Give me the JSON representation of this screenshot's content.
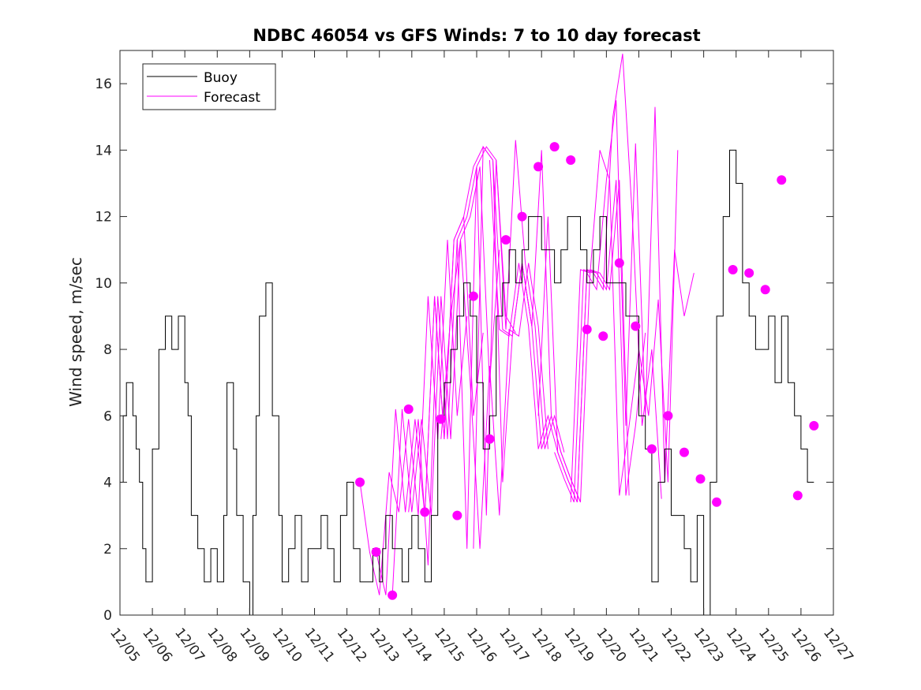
{
  "chart_data": {
    "type": "line",
    "title": "NDBC 46054 vs GFS Winds: 7 to 10 day forecast",
    "xlabel": "",
    "ylabel": "Wind speed, m/sec",
    "xlim": [
      0,
      22
    ],
    "ylim": [
      0,
      17
    ],
    "x_tick_labels": [
      "12/05",
      "12/06",
      "12/07",
      "12/08",
      "12/09",
      "12/10",
      "12/11",
      "12/12",
      "12/13",
      "12/14",
      "12/15",
      "12/16",
      "12/17",
      "12/18",
      "12/19",
      "12/20",
      "12/21",
      "12/22",
      "12/23",
      "12/24",
      "12/25",
      "12/26",
      "12/27"
    ],
    "y_ticks": [
      0,
      2,
      4,
      6,
      8,
      10,
      12,
      14,
      16
    ],
    "legend": {
      "location": "top-left",
      "entries": [
        {
          "label": "Buoy",
          "color": "#000000"
        },
        {
          "label": "Forecast",
          "color": "#ff00ff"
        }
      ]
    },
    "colors": {
      "buoy": "#000000",
      "forecast": "#ff00ff"
    },
    "series": [
      {
        "name": "Buoy",
        "x": [
          0.0,
          0.1,
          0.2,
          0.3,
          0.4,
          0.5,
          0.6,
          0.7,
          0.8,
          1.0,
          1.2,
          1.4,
          1.6,
          1.8,
          2.0,
          2.1,
          2.2,
          2.4,
          2.6,
          2.8,
          3.0,
          3.2,
          3.3,
          3.5,
          3.6,
          3.8,
          4.0,
          4.1,
          4.2,
          4.3,
          4.5,
          4.7,
          4.9,
          5.0,
          5.2,
          5.4,
          5.6,
          5.8,
          6.0,
          6.2,
          6.4,
          6.6,
          6.8,
          7.0,
          7.2,
          7.4,
          7.6,
          7.8,
          8.0,
          8.1,
          8.2,
          8.4,
          8.5,
          8.7,
          8.9,
          9.0,
          9.2,
          9.4,
          9.6,
          9.8,
          10.0,
          10.2,
          10.4,
          10.6,
          10.8,
          11.0,
          11.2,
          11.4,
          11.6,
          11.8,
          12.0,
          12.2,
          12.4,
          12.6,
          12.8,
          13.0,
          13.2,
          13.4,
          13.6,
          13.8,
          14.0,
          14.2,
          14.4,
          14.6,
          14.8,
          15.0,
          15.2,
          15.4,
          15.6,
          15.8,
          16.0,
          16.2,
          16.4,
          16.6,
          16.8,
          17.0,
          17.2,
          17.4,
          17.6,
          17.8,
          18.0,
          18.2,
          18.4,
          18.6,
          18.8,
          19.0,
          19.2,
          19.4,
          19.6,
          19.8,
          20.0,
          20.2,
          20.4,
          20.6,
          20.8,
          21.0,
          21.2,
          21.4
        ],
        "y": [
          4,
          6,
          7,
          7,
          6,
          5,
          4,
          2,
          1,
          5,
          8,
          9,
          8,
          9,
          7,
          6,
          3,
          2,
          1,
          2,
          1,
          3,
          7,
          5,
          3,
          1,
          0,
          3,
          6,
          9,
          10,
          6,
          3,
          1,
          2,
          3,
          1,
          2,
          2,
          3,
          2,
          1,
          3,
          4,
          2,
          1,
          1,
          2,
          1,
          2,
          3,
          2,
          2,
          1,
          2,
          3,
          2,
          1,
          3,
          6,
          7,
          8,
          9,
          10,
          9,
          7,
          5,
          6,
          9,
          10,
          11,
          10,
          11,
          12,
          12,
          11,
          11,
          10,
          11,
          12,
          12,
          11,
          10,
          11,
          12,
          10,
          10,
          10,
          9,
          9,
          6,
          5,
          1,
          4,
          5,
          3,
          3,
          2,
          1,
          3,
          0,
          4,
          9,
          12,
          14,
          13,
          10,
          9,
          8,
          8,
          9,
          7,
          9,
          7,
          6,
          5,
          4,
          4
        ]
      },
      {
        "name": "Forecast",
        "runs": [
          {
            "x": [
              7.4,
              7.7,
              8.0,
              8.3,
              8.6,
              8.9,
              9.2,
              9.5,
              9.8,
              10.1,
              10.4,
              10.7
            ],
            "y": [
              4.0,
              1.9,
              0.6,
              4.3,
              3.1,
              5.9,
              3.0,
              9.6,
              5.3,
              11.3,
              6.0,
              9.0
            ]
          },
          {
            "x": [
              7.9,
              8.2,
              8.5,
              8.8,
              9.1,
              9.4,
              9.7,
              10.0,
              10.3,
              10.6,
              10.9,
              11.2
            ],
            "y": [
              1.9,
              0.6,
              6.2,
              3.1,
              5.9,
              3.0,
              9.6,
              5.3,
              11.3,
              12.0,
              6.0,
              8.5
            ]
          },
          {
            "x": [
              8.4,
              8.7,
              9.0,
              9.3,
              9.6,
              9.9,
              10.2,
              10.5,
              10.8,
              11.1,
              11.4,
              11.7
            ],
            "y": [
              0.6,
              6.2,
              3.1,
              5.9,
              3.0,
              9.6,
              5.3,
              11.3,
              12.0,
              13.5,
              7.0,
              11.0
            ]
          },
          {
            "x": [
              8.9,
              9.2,
              9.5,
              9.8,
              10.1,
              10.4,
              10.7,
              11.0,
              11.3,
              11.6,
              11.9,
              12.2
            ],
            "y": [
              3.1,
              5.9,
              1.5,
              9.6,
              5.3,
              11.3,
              12.0,
              13.5,
              14.1,
              13.7,
              9.0,
              8.5
            ]
          },
          {
            "x": [
              9.4,
              9.7,
              10.0,
              10.3,
              10.6,
              10.9,
              11.2,
              11.5,
              11.8,
              12.1,
              12.4,
              12.7
            ],
            "y": [
              3.0,
              9.6,
              5.3,
              11.3,
              12.0,
              13.5,
              14.1,
              13.7,
              8.6,
              8.4,
              10.6,
              8.7
            ]
          },
          {
            "x": [
              9.9,
              10.2,
              10.5,
              10.8,
              11.1,
              11.4,
              11.7,
              12.0,
              12.3,
              12.6,
              12.9,
              13.2
            ],
            "y": [
              5.3,
              9.0,
              11.3,
              7.0,
              2.0,
              7.5,
              3.0,
              8.6,
              8.4,
              10.6,
              8.7,
              5.0
            ]
          },
          {
            "x": [
              10.4,
              10.7,
              11.0,
              11.3,
              11.6,
              11.9,
              12.2,
              12.5,
              12.8,
              13.1,
              13.4,
              13.7
            ],
            "y": [
              11.3,
              2.0,
              13.5,
              3.0,
              13.7,
              8.6,
              14.3,
              10.6,
              8.7,
              5.0,
              6.0,
              4.9
            ]
          },
          {
            "x": [
              10.9,
              11.2,
              11.5,
              11.8,
              12.1,
              12.4,
              12.7,
              13.0,
              13.3,
              13.6,
              13.9,
              14.2
            ],
            "y": [
              2.0,
              14.1,
              13.7,
              4.0,
              8.4,
              10.6,
              8.7,
              14.0,
              6.0,
              4.9,
              4.1,
              3.4
            ]
          },
          {
            "x": [
              11.4,
              11.7,
              12.0,
              12.3,
              12.6,
              12.9,
              13.2,
              13.5,
              13.8,
              14.1,
              14.4,
              14.7
            ],
            "y": [
              13.7,
              8.6,
              8.4,
              10.6,
              8.7,
              5.0,
              6.0,
              4.9,
              4.1,
              3.4,
              10.4,
              10.3
            ]
          },
          {
            "x": [
              12.4,
              12.7,
              13.0,
              13.3,
              13.6,
              13.9,
              14.2,
              14.5,
              14.8,
              15.1,
              15.4,
              15.7
            ],
            "y": [
              10.6,
              8.7,
              5.0,
              6.0,
              4.9,
              4.1,
              3.4,
              10.4,
              10.3,
              9.8,
              13.1,
              3.6
            ]
          },
          {
            "x": [
              12.9,
              13.2,
              13.5,
              13.8,
              14.1,
              14.4,
              14.7,
              15.0,
              15.3,
              15.6,
              15.9,
              16.2
            ],
            "y": [
              6.0,
              12.0,
              4.9,
              4.1,
              3.4,
              10.4,
              10.3,
              9.8,
              13.1,
              3.6,
              5.7,
              8.5
            ]
          },
          {
            "x": [
              13.4,
              13.7,
              14.0,
              14.3,
              14.6,
              14.9,
              15.2,
              15.5,
              15.8,
              16.1,
              16.4,
              16.7
            ],
            "y": [
              4.9,
              4.1,
              3.4,
              10.4,
              10.3,
              9.8,
              15.0,
              16.9,
              12.0,
              5.7,
              8.0,
              3.5
            ]
          },
          {
            "x": [
              13.9,
              14.2,
              14.5,
              14.8,
              15.1,
              15.4,
              15.7,
              16.0,
              16.3,
              16.6,
              16.9,
              17.2
            ],
            "y": [
              3.4,
              10.4,
              10.3,
              14.0,
              13.1,
              3.6,
              5.7,
              8.0,
              6.0,
              9.5,
              4.0,
              14.0
            ]
          },
          {
            "x": [
              14.4,
              14.7,
              15.0,
              15.3,
              15.6,
              15.9,
              16.2,
              16.5,
              16.8,
              17.1,
              17.4,
              17.7
            ],
            "y": [
              10.3,
              9.8,
              13.1,
              15.5,
              5.7,
              14.2,
              6.0,
              15.3,
              4.0,
              11.0,
              9.0,
              10.3
            ]
          }
        ],
        "markers": {
          "x": [
            7.4,
            7.9,
            8.4,
            8.9,
            9.4,
            9.9,
            10.4,
            10.9,
            11.4,
            11.9,
            12.4,
            12.9,
            13.4,
            13.9,
            14.4,
            14.9,
            15.4,
            15.9,
            16.4,
            16.9,
            17.4,
            17.9,
            18.4,
            18.9,
            19.4,
            19.9,
            20.4,
            20.9,
            21.4
          ],
          "y": [
            4.0,
            1.9,
            0.6,
            6.2,
            3.1,
            5.9,
            3.0,
            9.6,
            5.3,
            11.3,
            12.0,
            13.5,
            14.1,
            13.7,
            8.6,
            8.4,
            10.6,
            8.7,
            5.0,
            6.0,
            4.9,
            4.1,
            3.4,
            10.4,
            10.3,
            9.8,
            13.1,
            3.6,
            5.7
          ]
        }
      }
    ]
  }
}
